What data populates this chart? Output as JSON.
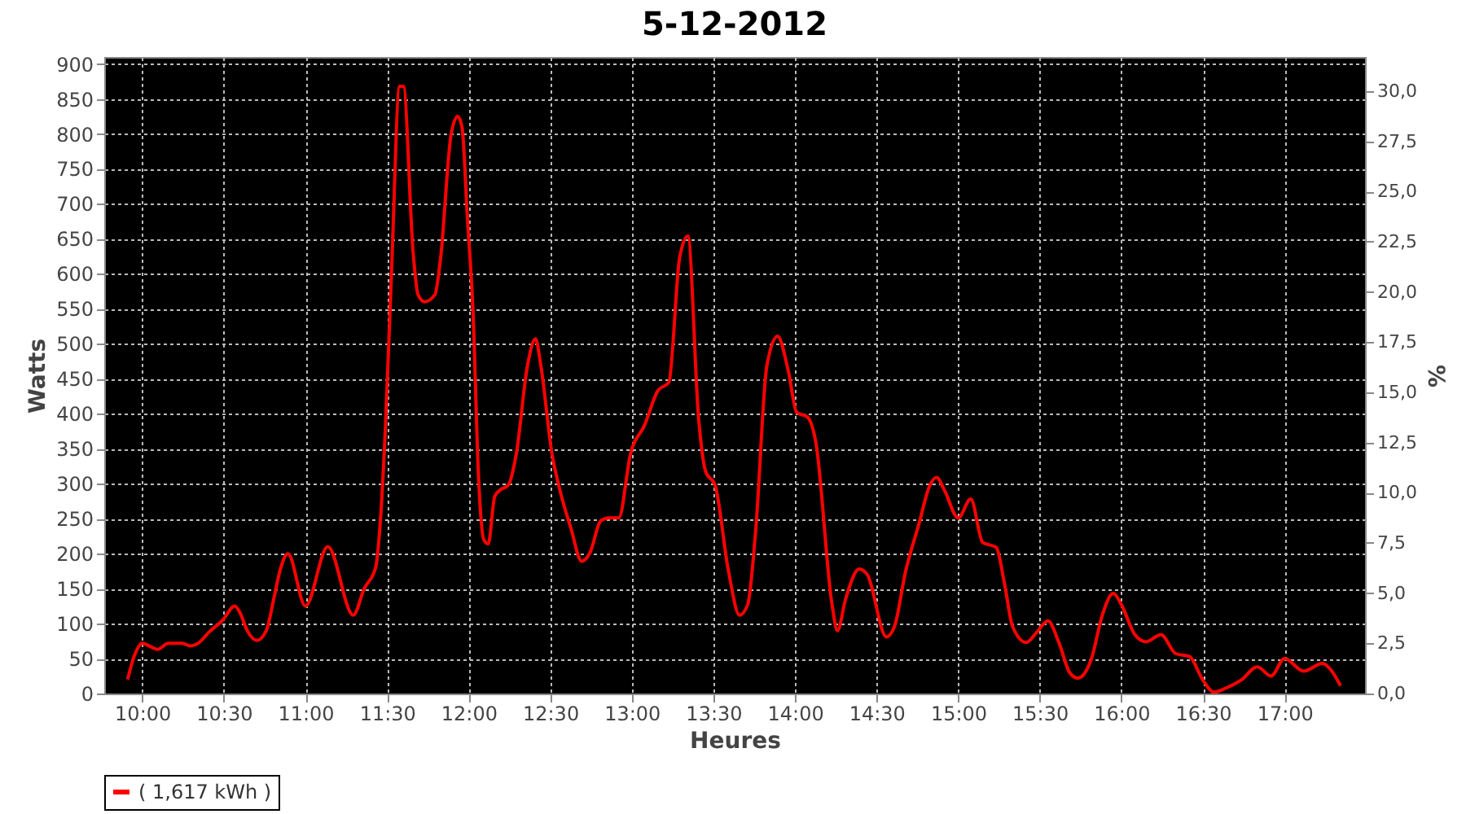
{
  "chart_data": {
    "type": "line",
    "title": "5-12-2012",
    "xlabel": "Heures",
    "ylabel": "Watts",
    "y2label": "%",
    "x": [
      9.91,
      9.953,
      10.0,
      10.043,
      10.093,
      10.16,
      10.243,
      10.293,
      10.343,
      10.41,
      10.493,
      10.567,
      10.6,
      10.643,
      10.703,
      10.76,
      10.81,
      10.843,
      10.893,
      11.0,
      11.137,
      11.293,
      11.36,
      11.43,
      11.46,
      11.49,
      11.527,
      11.577,
      11.6,
      11.66,
      11.69,
      11.73,
      11.793,
      11.827,
      11.893,
      11.933,
      11.96,
      11.993,
      12.027,
      12.06,
      12.093,
      12.12,
      12.16,
      12.193,
      12.243,
      12.293,
      12.36,
      12.41,
      12.443,
      12.51,
      12.56,
      12.627,
      12.693,
      12.743,
      12.81,
      12.86,
      12.92,
      12.993,
      13.077,
      13.16,
      13.227,
      13.293,
      13.343,
      13.41,
      13.453,
      13.51,
      13.593,
      13.66,
      13.71,
      13.76,
      13.827,
      13.893,
      13.96,
      14.01,
      14.077,
      14.127,
      14.227,
      14.26,
      14.31,
      14.393,
      14.443,
      14.56,
      14.61,
      14.677,
      14.76,
      14.827,
      14.867,
      14.917,
      15.0,
      15.077,
      15.15,
      15.233,
      15.283,
      15.333,
      15.417,
      15.483,
      15.55,
      15.617,
      15.683,
      15.733,
      15.817,
      15.883,
      15.95,
      16.0,
      16.083,
      16.15,
      16.243,
      16.333,
      16.417,
      16.5,
      16.567,
      16.633,
      16.733,
      16.833,
      16.917,
      17.0,
      17.117,
      17.233,
      17.283,
      17.343
    ],
    "series": [
      {
        "name": "( 1,617 kWh )",
        "color": "#ff0000",
        "values": [
          20,
          55,
          72,
          68,
          63,
          72,
          72,
          68,
          72,
          88,
          105,
          125,
          115,
          90,
          76,
          90,
          140,
          175,
          200,
          125,
          210,
          112,
          150,
          180,
          250,
          380,
          600,
          868,
          868,
          630,
          570,
          560,
          570,
          620,
          800,
          825,
          809,
          677,
          546,
          313,
          220,
          214,
          282,
          291,
          298,
          344,
          468,
          507,
          468,
          344,
          290,
          236,
          189,
          201,
          247,
          251,
          251,
          344,
          383,
          433,
          445,
          623,
          654,
          391,
          317,
          298,
          174,
          112,
          127,
          236,
          468,
          511,
          460,
          402,
          395,
          360,
          127,
          90,
          135,
          178,
          170,
          81,
          96,
          174,
          243,
          298,
          309,
          290,
          251,
          278,
          216,
          209,
          158,
          96,
          73,
          88,
          104,
          73,
          30,
          22,
          50,
          112,
          143,
          127,
          84,
          74,
          84,
          57,
          53,
          19,
          2,
          7,
          19,
          38,
          25,
          50,
          32,
          43,
          34,
          11
        ]
      }
    ],
    "xlim": [
      9.767,
      17.493
    ],
    "xticks": [
      {
        "value": 10,
        "label": "10:00"
      },
      {
        "value": 10.5,
        "label": "10:30"
      },
      {
        "value": 11,
        "label": "11:00"
      },
      {
        "value": 11.5,
        "label": "11:30"
      },
      {
        "value": 12,
        "label": "12:00"
      },
      {
        "value": 12.5,
        "label": "12:30"
      },
      {
        "value": 13,
        "label": "13:00"
      },
      {
        "value": 13.5,
        "label": "13:30"
      },
      {
        "value": 14,
        "label": "14:00"
      },
      {
        "value": 14.5,
        "label": "14:30"
      },
      {
        "value": 15,
        "label": "15:00"
      },
      {
        "value": 15.5,
        "label": "15:30"
      },
      {
        "value": 16,
        "label": "16:00"
      },
      {
        "value": 16.5,
        "label": "16:30"
      },
      {
        "value": 17,
        "label": "17:00"
      }
    ],
    "ylim": [
      0,
      910
    ],
    "yticks": [
      0,
      50,
      100,
      150,
      200,
      250,
      300,
      350,
      400,
      450,
      500,
      550,
      600,
      650,
      700,
      750,
      800,
      850,
      900
    ],
    "y2lim": [
      0,
      31.7
    ],
    "y2ticks": [
      {
        "value": 0,
        "label": "0,0"
      },
      {
        "value": 2.5,
        "label": "2,5"
      },
      {
        "value": 5,
        "label": "5,0"
      },
      {
        "value": 7.5,
        "label": "7,5"
      },
      {
        "value": 10,
        "label": "10,0"
      },
      {
        "value": 12.5,
        "label": "12,5"
      },
      {
        "value": 15,
        "label": "15,0"
      },
      {
        "value": 17.5,
        "label": "17,5"
      },
      {
        "value": 20,
        "label": "20,0"
      },
      {
        "value": 22.5,
        "label": "22,5"
      },
      {
        "value": 25,
        "label": "25,0"
      },
      {
        "value": 27.5,
        "label": "27,5"
      },
      {
        "value": 30,
        "label": "30,0"
      }
    ],
    "grid": true,
    "legend": "bottom",
    "marker": "none",
    "line_style": "solid"
  }
}
